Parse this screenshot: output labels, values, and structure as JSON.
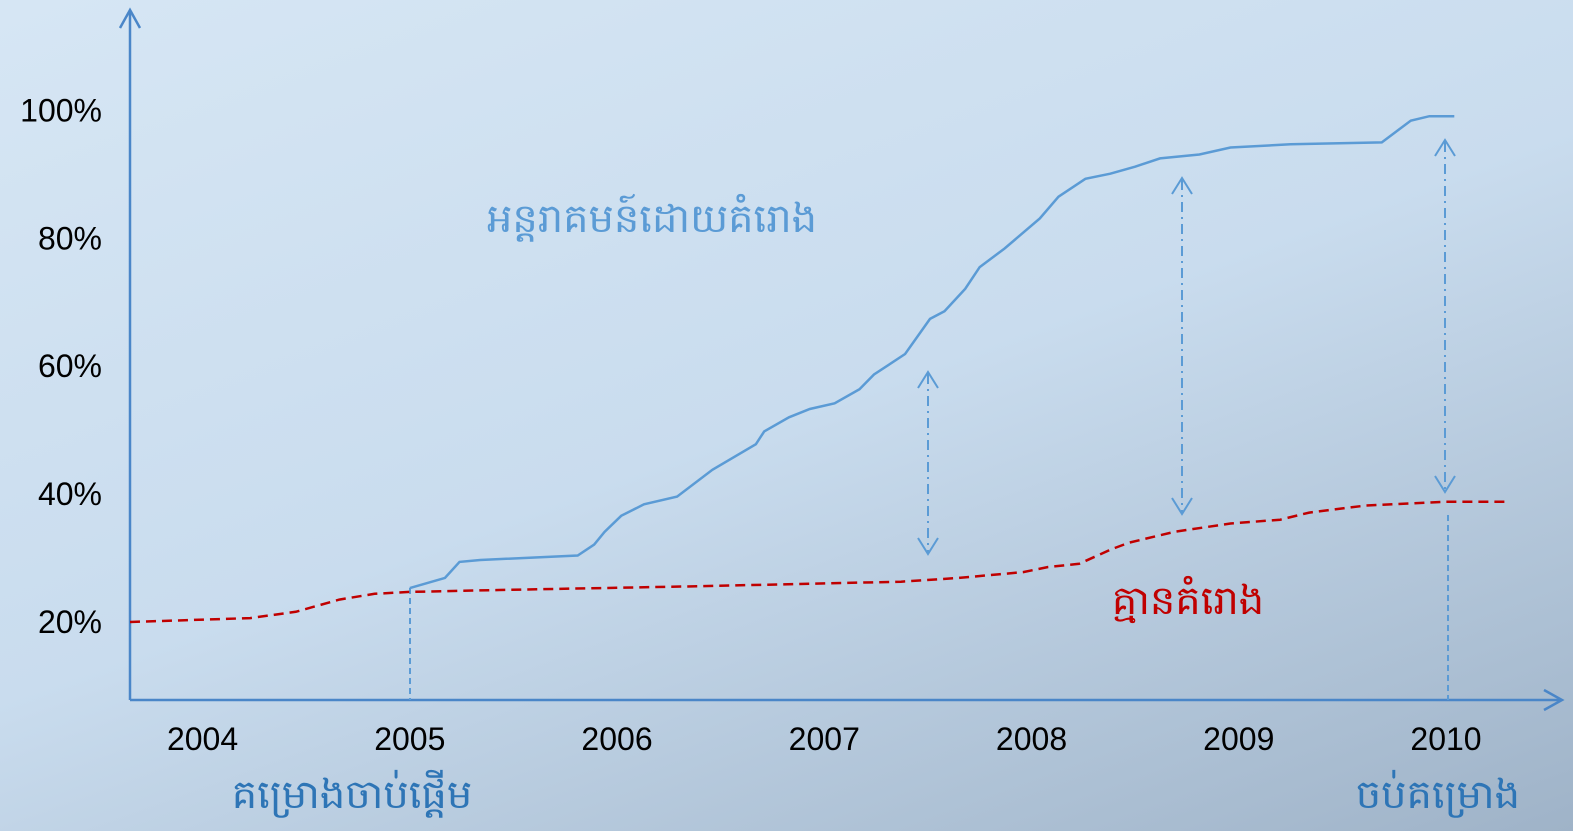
{
  "chart_data": {
    "type": "line",
    "series": [
      {
        "name": "អន្តរាគមន៍ដោយគំរោង",
        "color": "#5b9bd5",
        "dash": false,
        "x": [
          2005.0,
          2005.17,
          2005.24,
          2005.34,
          2005.81,
          2005.89,
          2005.94,
          2006.02,
          2006.13,
          2006.29,
          2006.46,
          2006.67,
          2006.71,
          2006.83,
          2006.93,
          2007.05,
          2007.17,
          2007.24,
          2007.39,
          2007.51,
          2007.58,
          2007.68,
          2007.75,
          2007.87,
          2008.04,
          2008.13,
          2008.26,
          2008.38,
          2008.5,
          2008.62,
          2008.81,
          2008.96,
          2009.25,
          2009.69,
          2009.76,
          2009.83,
          2009.92,
          2010.04
        ],
        "values": [
          25.3,
          26.9,
          29.4,
          29.7,
          30.4,
          32.1,
          34.1,
          36.6,
          38.4,
          39.6,
          43.8,
          47.8,
          49.8,
          52.0,
          53.3,
          54.2,
          56.4,
          58.7,
          61.9,
          67.4,
          68.6,
          72.1,
          75.5,
          78.4,
          83.1,
          86.5,
          89.3,
          90.1,
          91.2,
          92.5,
          93.1,
          94.2,
          94.7,
          95.0,
          96.7,
          98.4,
          99.1,
          99.1
        ]
      },
      {
        "name": "គ្មានគំរោង",
        "color": "#c00000",
        "dash": true,
        "x": [
          2003.65,
          2004.23,
          2004.45,
          2004.66,
          2004.83,
          2005.0,
          2005.43,
          2006.4,
          2007.37,
          2007.65,
          2007.96,
          2008.08,
          2008.23,
          2008.38,
          2008.47,
          2008.69,
          2008.96,
          2009.2,
          2009.34,
          2009.61,
          2009.99,
          2010.31
        ],
        "values": [
          20.0,
          20.6,
          21.6,
          23.5,
          24.4,
          24.7,
          25.0,
          25.6,
          26.3,
          26.9,
          27.8,
          28.6,
          29.1,
          31.3,
          32.4,
          34.1,
          35.4,
          36.0,
          37.1,
          38.2,
          38.8,
          38.8
        ]
      }
    ],
    "xlim": [
      2003.65,
      2010.55
    ],
    "xticks": [
      2004,
      2005,
      2006,
      2007,
      2008,
      2009,
      2010
    ],
    "ylim": [
      7.8,
      115.7
    ],
    "yticks": [
      {
        "value": 20,
        "label": "20%"
      },
      {
        "value": 40,
        "label": "40%"
      },
      {
        "value": 60,
        "label": "60%"
      },
      {
        "value": 80,
        "label": "80%"
      },
      {
        "value": 100,
        "label": "100%"
      }
    ],
    "grid": false,
    "annotations": [
      "គម្រោងចាប់ផ្តើម",
      "ចប់គម្រោង"
    ]
  }
}
